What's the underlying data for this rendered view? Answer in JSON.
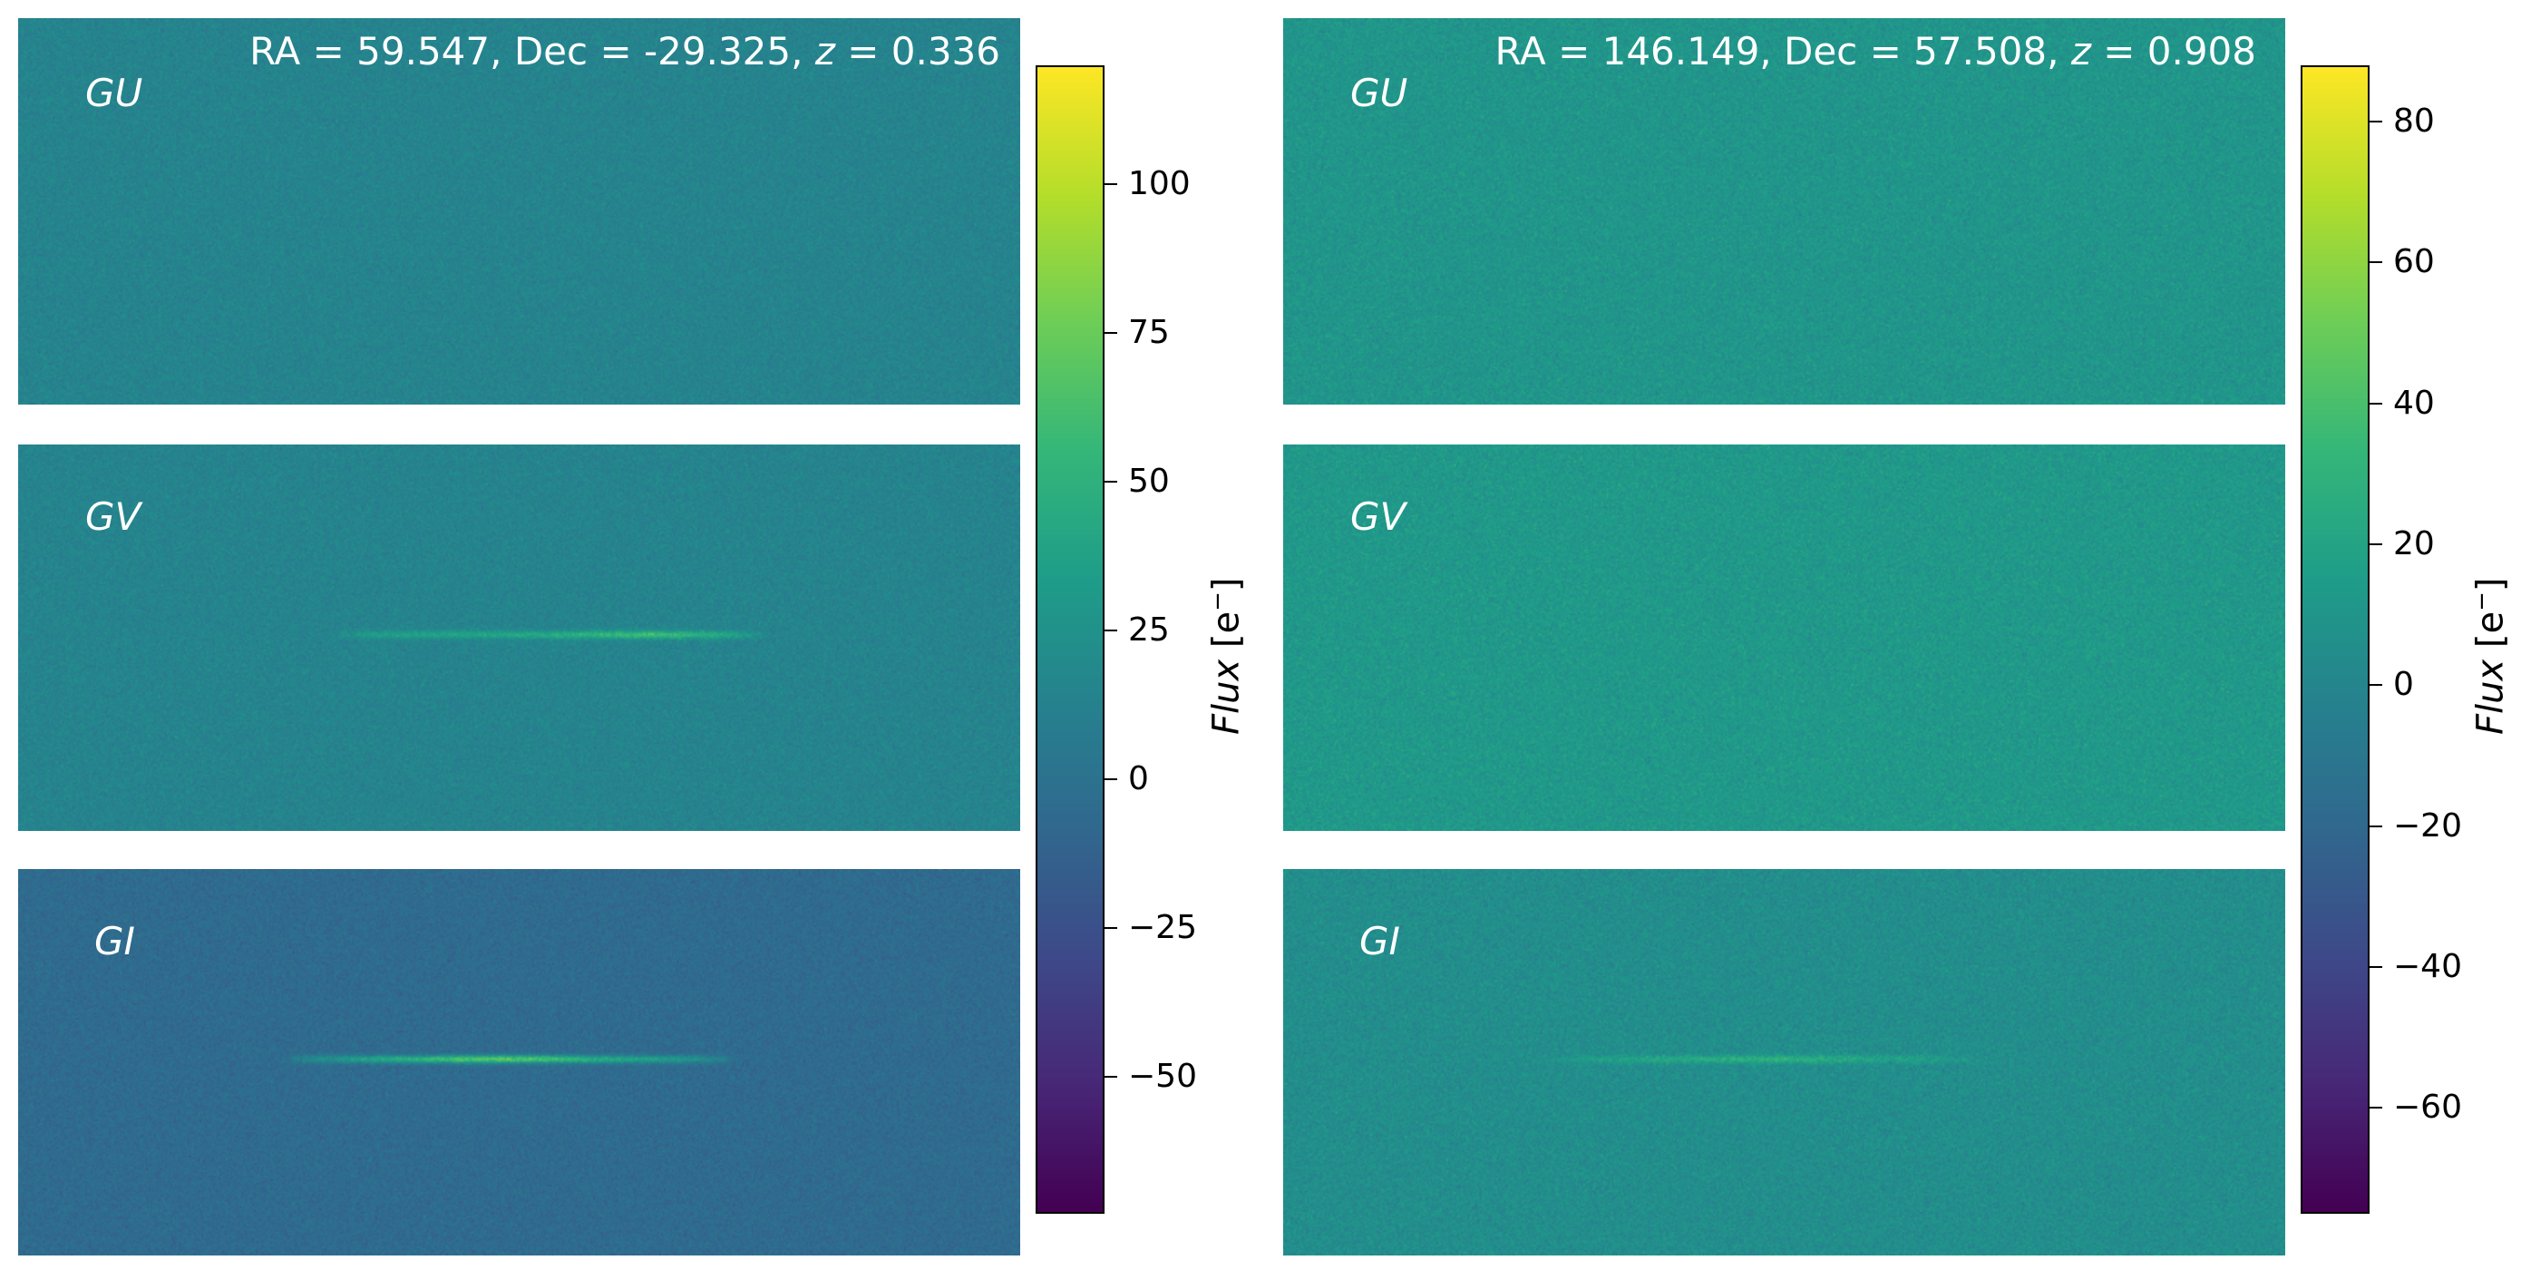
{
  "figure": {
    "colormap": "viridis",
    "columns": [
      {
        "title_parts": {
          "prefix": "RA = 59.547, Dec = -29.325, ",
          "z_symbol": "z",
          "suffix": " = 0.336"
        },
        "panels": [
          {
            "band": "GU",
            "background_flux": 14,
            "streak": null
          },
          {
            "band": "GV",
            "background_flux": 14,
            "streak": {
              "x_start": 0.33,
              "x_end": 0.73,
              "y": 0.49,
              "peak_x": 0.63,
              "peak_flux": 65
            }
          },
          {
            "band": "GI",
            "background_flux": -6,
            "streak": {
              "x_start": 0.28,
              "x_end": 0.7,
              "y": 0.49,
              "peak_x": 0.48,
              "peak_flux": 80
            }
          }
        ],
        "colorbar": {
          "vmin": -73,
          "vmax": 120,
          "ticks": [
            "100",
            "75",
            "50",
            "25",
            "0",
            "−25",
            "−50"
          ],
          "tick_values": [
            100,
            75,
            50,
            25,
            0,
            -25,
            -50
          ],
          "label_main": "Flux",
          "label_unit": "[e",
          "label_sup": "−",
          "label_close": "]"
        }
      },
      {
        "title_parts": {
          "prefix": "RA = 146.149, Dec = 57.508, ",
          "z_symbol": "z",
          "suffix": " = 0.908"
        },
        "panels": [
          {
            "band": "GU",
            "background_flux": 10,
            "streak": null
          },
          {
            "band": "GV",
            "background_flux": 12,
            "streak": null
          },
          {
            "band": "GI",
            "background_flux": 5,
            "streak": {
              "x_start": 0.28,
              "x_end": 0.68,
              "y": 0.49,
              "peak_x": 0.48,
              "peak_flux": 32
            }
          }
        ],
        "colorbar": {
          "vmin": -75,
          "vmax": 88,
          "ticks": [
            "80",
            "60",
            "40",
            "20",
            "0",
            "−20",
            "−40",
            "−60"
          ],
          "tick_values": [
            80,
            60,
            40,
            20,
            0,
            -20,
            -40,
            -60
          ],
          "label_main": "Flux",
          "label_unit": "[e",
          "label_sup": "−",
          "label_close": "]"
        }
      }
    ]
  }
}
